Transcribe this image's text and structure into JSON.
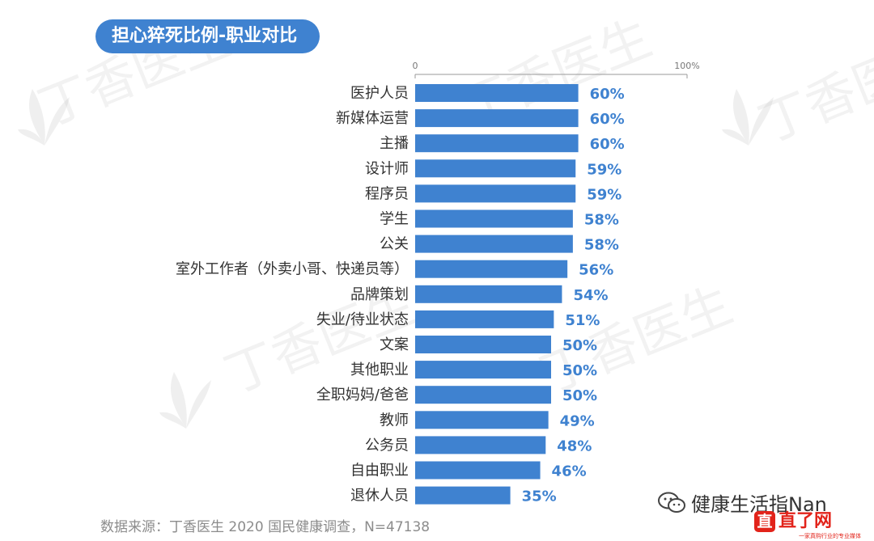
{
  "title": "担心猝死比例-职业对比",
  "source_note": "数据来源：丁香医生 2020 国民健康调查，N=47138",
  "watermark_text": "丁香医生",
  "wechat_account": "健康生活指Nan",
  "logo": {
    "icon_char": "直",
    "text": "直了网",
    "slogan": "一家真购行业的专业媒体"
  },
  "colors": {
    "bar": "#3f82d0",
    "value_label": "#3f82d0",
    "title_bg": "#3f82d0",
    "logo": "#e2231a"
  },
  "chart_data": {
    "type": "bar",
    "orientation": "horizontal",
    "title": "担心猝死比例-职业对比",
    "xlim": [
      0,
      100
    ],
    "ticks": [
      "0",
      "100%"
    ],
    "grid": false,
    "categories": [
      "医护人员",
      "新媒体运营",
      "主播",
      "设计师",
      "程序员",
      "学生",
      "公关",
      "室外工作者（外卖小哥、快递员等）",
      "品牌策划",
      "失业/待业状态",
      "文案",
      "其他职业",
      "全职妈妈/爸爸",
      "教师",
      "公务员",
      "自由职业",
      "退休人员"
    ],
    "values": [
      60,
      60,
      60,
      59,
      59,
      58,
      58,
      56,
      54,
      51,
      50,
      50,
      50,
      49,
      48,
      46,
      35
    ],
    "value_labels": [
      "60%",
      "60%",
      "60%",
      "59%",
      "59%",
      "58%",
      "58%",
      "56%",
      "54%",
      "51%",
      "50%",
      "50%",
      "50%",
      "49%",
      "48%",
      "46%",
      "35%"
    ]
  }
}
